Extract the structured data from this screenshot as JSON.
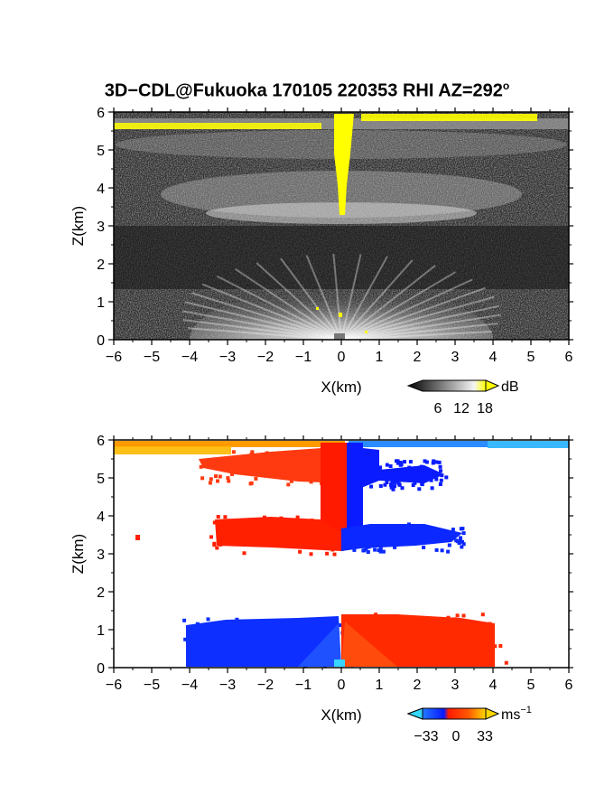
{
  "title": "3D−CDL@Fukuoka 170105 220353 RHI AZ=292",
  "title_sup": "o",
  "colors": {
    "background": "#ffffff",
    "yellow": "#ffff00",
    "red": "#ff2000",
    "blue": "#0a28ff",
    "cyan": "#3ab8ff"
  },
  "chart_data": [
    {
      "type": "heatmap",
      "panel": "reflectivity",
      "xlabel": "X(km)",
      "ylabel": "Z(km)",
      "xlim": [
        -6,
        6
      ],
      "ylim": [
        0,
        6
      ],
      "xticks": [
        "−6",
        "−5",
        "−4",
        "−3",
        "−2",
        "−1",
        "0",
        "1",
        "2",
        "3",
        "4",
        "5",
        "6"
      ],
      "yticks": [
        "0",
        "1",
        "2",
        "3",
        "4",
        "5",
        "6"
      ],
      "colorbar": {
        "unit": "dB",
        "ticks": [
          "6",
          "12",
          "18"
        ],
        "colormap": "grayscale-to-yellow"
      }
    },
    {
      "type": "heatmap",
      "panel": "doppler-velocity",
      "xlabel": "X(km)",
      "ylabel": "Z(km)",
      "xlim": [
        -6,
        6
      ],
      "ylim": [
        0,
        6
      ],
      "xticks": [
        "−6",
        "−5",
        "−4",
        "−3",
        "−2",
        "−1",
        "0",
        "1",
        "2",
        "3",
        "4",
        "5",
        "6"
      ],
      "yticks": [
        "0",
        "1",
        "2",
        "3",
        "4",
        "5",
        "6"
      ],
      "colorbar": {
        "unit": "ms",
        "unit_exp": "−1",
        "ticks": [
          "−33",
          "0",
          "33"
        ],
        "colormap": "cyan-blue-red-yellow"
      }
    }
  ]
}
